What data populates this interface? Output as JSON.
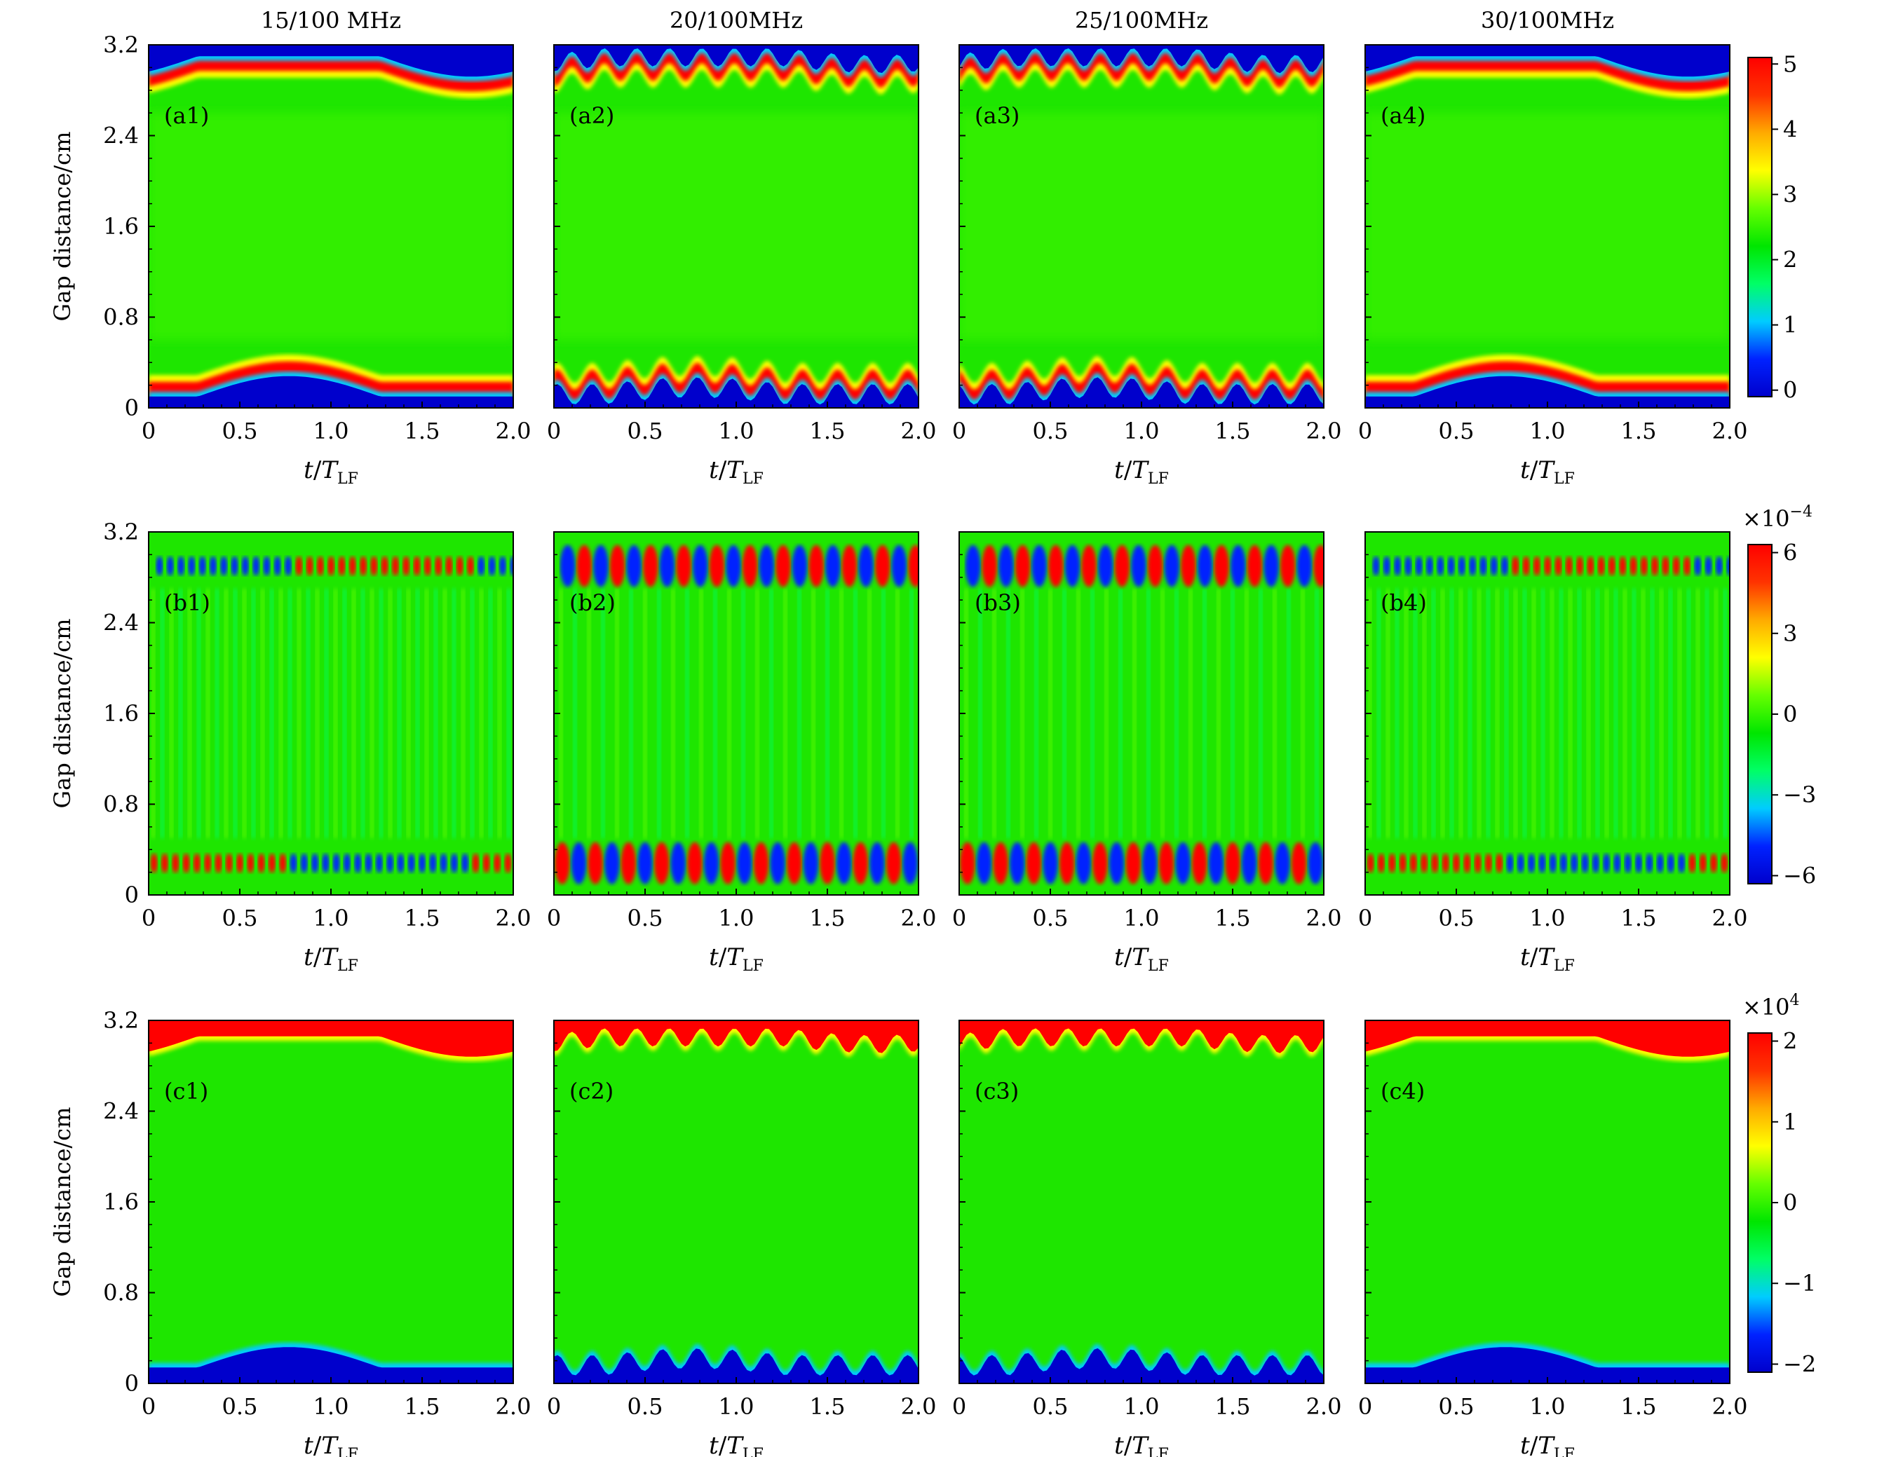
{
  "chart_data": {
    "type": "heatmap",
    "column_titles": [
      "15/100 MHz",
      "20/100MHz",
      "25/100MHz",
      "30/100MHz"
    ],
    "x_axis": {
      "label_main": "t/T",
      "label_sub": "LF",
      "range": [
        0,
        2.0
      ],
      "ticks": [
        {
          "value": 0,
          "label": "0"
        },
        {
          "value": 0.5,
          "label": "0.5"
        },
        {
          "value": 1.0,
          "label": "1.0"
        },
        {
          "value": 1.5,
          "label": "1.5"
        },
        {
          "value": 2.0,
          "label": "2.0"
        }
      ]
    },
    "y_axis": {
      "label": "Gap distance/cm",
      "range": [
        0,
        3.2
      ],
      "ticks": [
        {
          "value": 0,
          "label": "0"
        },
        {
          "value": 0.8,
          "label": "0.8"
        },
        {
          "value": 1.6,
          "label": "1.6"
        },
        {
          "value": 2.4,
          "label": "2.4"
        },
        {
          "value": 3.2,
          "label": "3.2"
        }
      ]
    },
    "rows": [
      {
        "row": "a",
        "panel_labels": [
          "(a1)",
          "(a2)",
          "(a3)",
          "(a4)"
        ],
        "colorbar": {
          "range": [
            -0.1,
            5.1
          ],
          "ticks": [
            {
              "value": 0,
              "label": "0"
            },
            {
              "value": 1,
              "label": "1"
            },
            {
              "value": 2,
              "label": "2"
            },
            {
              "value": 3,
              "label": "3"
            },
            {
              "value": 4,
              "label": "4"
            },
            {
              "value": 5,
              "label": "5"
            }
          ],
          "multiplier": {
            "base": "",
            "exponent": ""
          }
        }
      },
      {
        "row": "b",
        "panel_labels": [
          "(b1)",
          "(b2)",
          "(b3)",
          "(b4)"
        ],
        "colorbar": {
          "range": [
            -6.3,
            6.3
          ],
          "ticks": [
            {
              "value": -6,
              "label": "−6"
            },
            {
              "value": -3,
              "label": "−3"
            },
            {
              "value": 0,
              "label": "0"
            },
            {
              "value": 3,
              "label": "3"
            },
            {
              "value": 6,
              "label": "6"
            }
          ],
          "multiplier": {
            "base": "×10",
            "exponent": "−4"
          }
        }
      },
      {
        "row": "c",
        "panel_labels": [
          "(c1)",
          "(c2)",
          "(c3)",
          "(c4)"
        ],
        "colorbar": {
          "range": [
            -2.1,
            2.1
          ],
          "ticks": [
            {
              "value": -2,
              "label": "−2"
            },
            {
              "value": -1,
              "label": "−1"
            },
            {
              "value": 0,
              "label": "0"
            },
            {
              "value": 1,
              "label": "1"
            },
            {
              "value": 2,
              "label": "2"
            }
          ],
          "multiplier": {
            "base": "×10",
            "exponent": "4"
          }
        }
      }
    ],
    "colormap": [
      "#0000cc",
      "#0022ff",
      "#00ccff",
      "#00ff66",
      "#00e600",
      "#66ff00",
      "#ffff00",
      "#ffaa00",
      "#ff3300",
      "#ff0000"
    ],
    "background_color": "#1ee600"
  }
}
